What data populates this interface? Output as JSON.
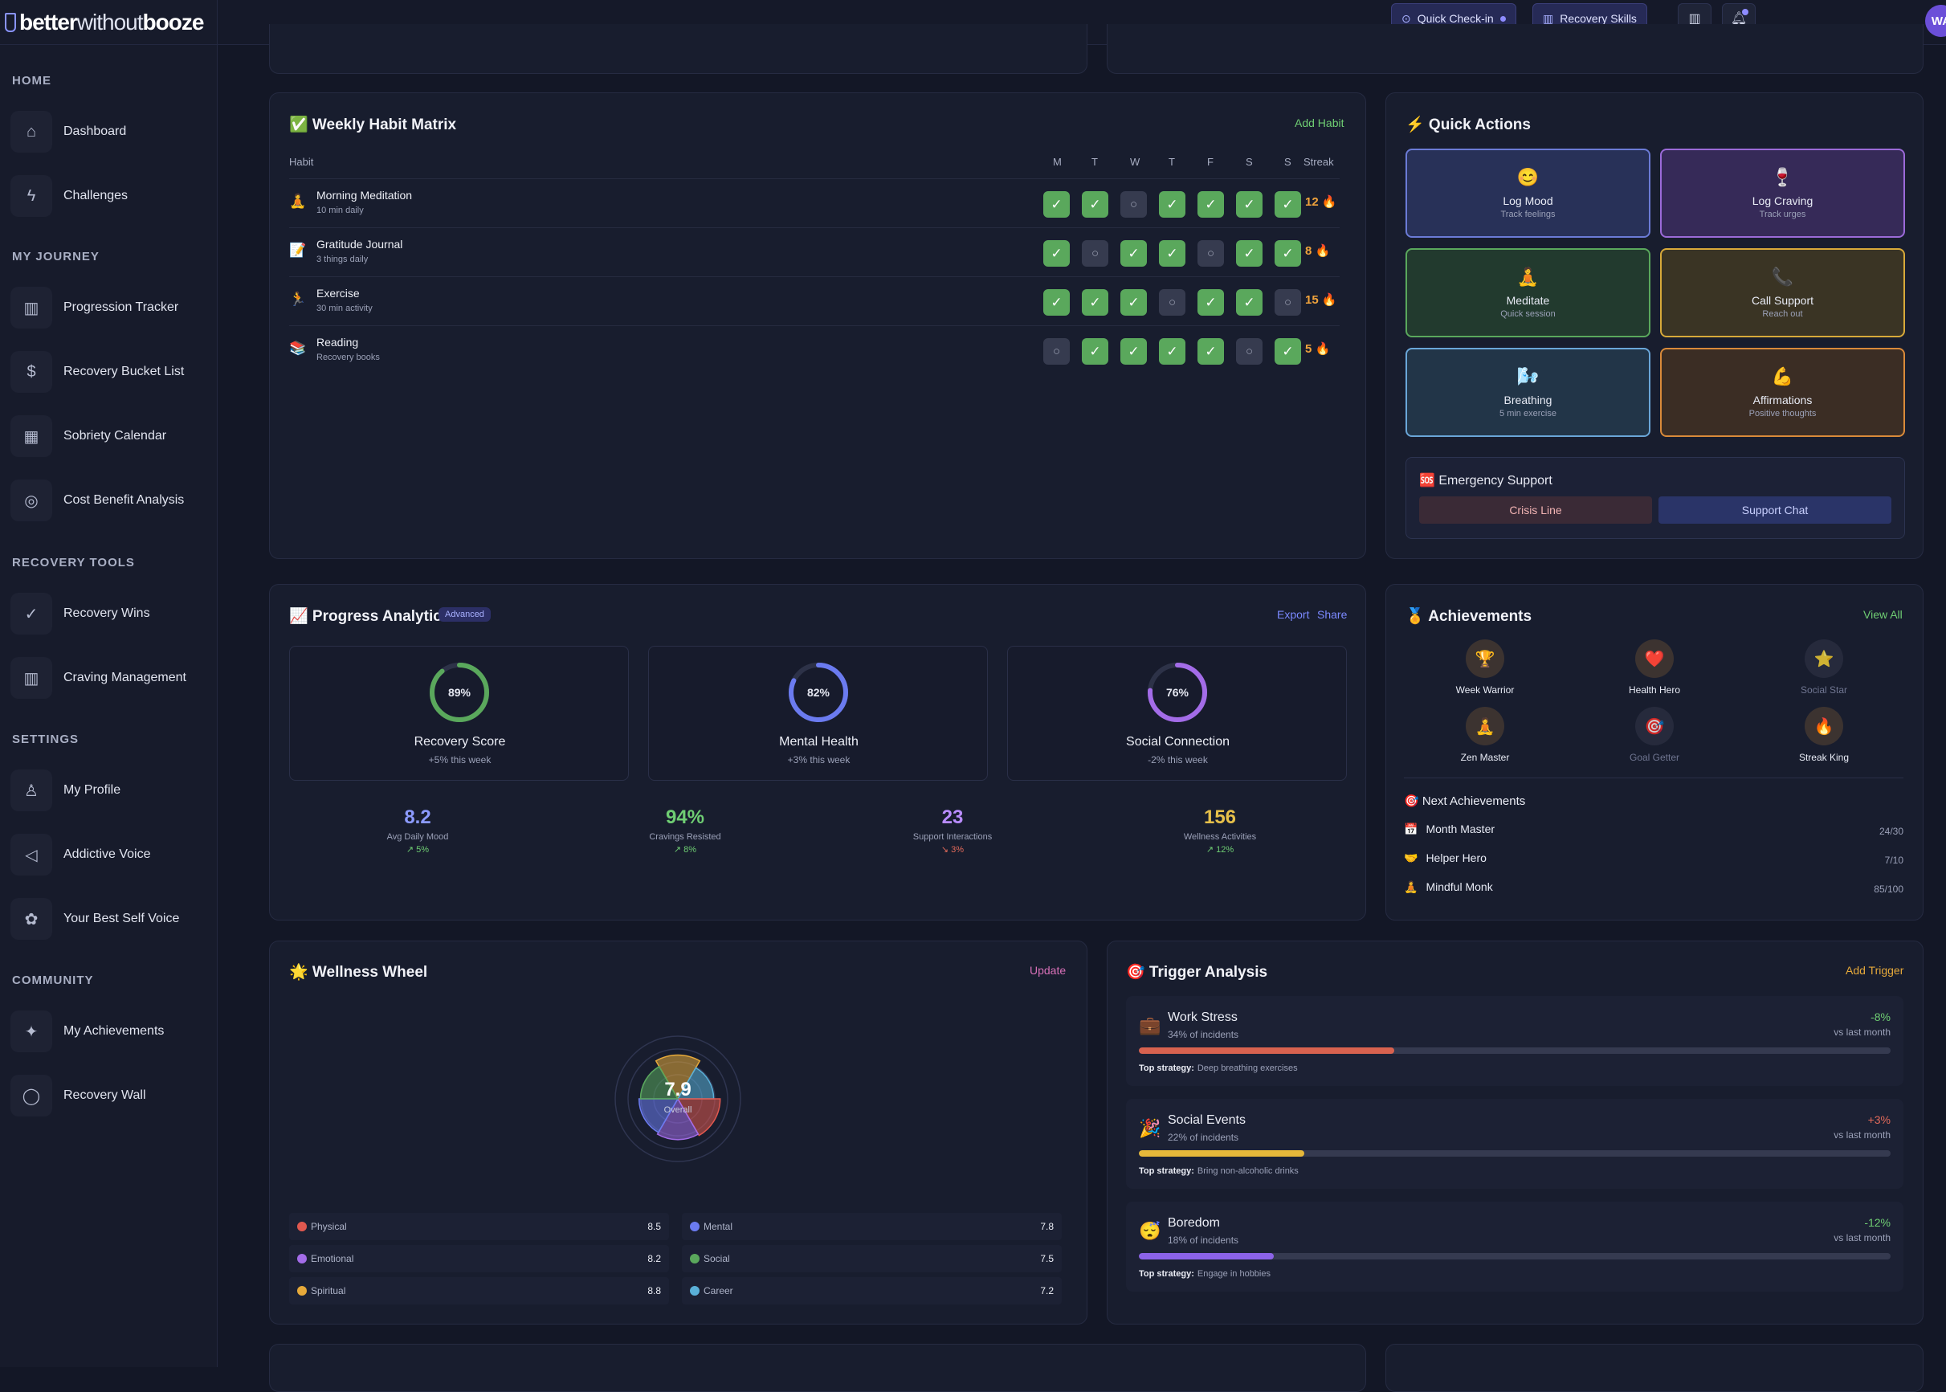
{
  "brand": {
    "part1": "better",
    "part2": "without",
    "part3": "booze"
  },
  "sidebar": {
    "sections": [
      {
        "label": "HOME",
        "items": [
          {
            "label": "Dashboard",
            "icon": "home-icon",
            "glyph": "⌂"
          },
          {
            "label": "Challenges",
            "icon": "bolt-icon",
            "glyph": "ϟ"
          }
        ]
      },
      {
        "label": "MY JOURNEY",
        "items": [
          {
            "label": "Progression Tracker",
            "icon": "bar-chart-icon",
            "glyph": "▥"
          },
          {
            "label": "Recovery Bucket List",
            "icon": "dollar-icon",
            "glyph": "$"
          },
          {
            "label": "Sobriety Calendar",
            "icon": "calendar-icon",
            "glyph": "▦"
          },
          {
            "label": "Cost Benefit Analysis",
            "icon": "coins-icon",
            "glyph": "◎"
          }
        ]
      },
      {
        "label": "RECOVERY TOOLS",
        "items": [
          {
            "label": "Recovery Wins",
            "icon": "check-circle-icon",
            "glyph": "✓"
          },
          {
            "label": "Craving Management",
            "icon": "bar-chart-icon",
            "glyph": "▥"
          }
        ]
      },
      {
        "label": "SETTINGS",
        "items": [
          {
            "label": "My Profile",
            "icon": "user-icon",
            "glyph": "♙"
          },
          {
            "label": "Addictive Voice",
            "icon": "speaker-icon",
            "glyph": "◁"
          },
          {
            "label": "Your Best Self Voice",
            "icon": "puzzle-icon",
            "glyph": "✿"
          }
        ]
      },
      {
        "label": "COMMUNITY",
        "items": [
          {
            "label": "My Achievements",
            "icon": "sparkle-icon",
            "glyph": "✦"
          },
          {
            "label": "Recovery Wall",
            "icon": "chat-icon",
            "glyph": "◯"
          }
        ]
      }
    ]
  },
  "topbar": {
    "checkin": "Quick Check-in",
    "skills": "Recovery Skills",
    "avatar": "WA"
  },
  "habits": {
    "title": "✅ Weekly Habit Matrix",
    "add": "Add Habit",
    "col_habit": "Habit",
    "col_streak": "Streak",
    "days": [
      "M",
      "T",
      "W",
      "T",
      "F",
      "S",
      "S"
    ],
    "rows": [
      {
        "icon": "🧘",
        "name": "Morning Meditation",
        "sub": "10 min daily",
        "cells": [
          1,
          1,
          0,
          1,
          1,
          1,
          1
        ],
        "streak": "12 🔥"
      },
      {
        "icon": "📝",
        "name": "Gratitude Journal",
        "sub": "3 things daily",
        "cells": [
          1,
          0,
          1,
          1,
          0,
          1,
          1
        ],
        "streak": "8 🔥"
      },
      {
        "icon": "🏃",
        "name": "Exercise",
        "sub": "30 min activity",
        "cells": [
          1,
          1,
          1,
          0,
          1,
          1,
          0
        ],
        "streak": "15 🔥"
      },
      {
        "icon": "📚",
        "name": "Reading",
        "sub": "Recovery books",
        "cells": [
          0,
          1,
          1,
          1,
          1,
          0,
          1
        ],
        "streak": "5 🔥"
      }
    ]
  },
  "quick": {
    "title": "⚡ Quick Actions",
    "items": [
      {
        "icon": "😊",
        "title": "Log Mood",
        "sub": "Track feelings",
        "border": "#6b7bd6",
        "bg": "#283158"
      },
      {
        "icon": "🍷",
        "title": "Log Craving",
        "sub": "Track urges",
        "border": "#9b6ad8",
        "bg": "#362a58"
      },
      {
        "icon": "🧘",
        "title": "Meditate",
        "sub": "Quick session",
        "border": "#5aa85c",
        "bg": "#223a2e"
      },
      {
        "icon": "📞",
        "title": "Call Support",
        "sub": "Reach out",
        "border": "#d7a93a",
        "bg": "#3a3424"
      },
      {
        "icon": "🌬️",
        "title": "Breathing",
        "sub": "5 min exercise",
        "border": "#6aa6d8",
        "bg": "#223548"
      },
      {
        "icon": "💪",
        "title": "Affirmations",
        "sub": "Positive thoughts",
        "border": "#d98a3a",
        "bg": "#3b2d24"
      }
    ],
    "emergency": {
      "title": "🆘 Emergency Support",
      "crisis": "Crisis Line",
      "chat": "Support Chat"
    }
  },
  "analytics": {
    "title": "📈 Progress Analytics",
    "badge": "Advanced",
    "export": "Export",
    "share": "Share",
    "rings": [
      {
        "value": 89,
        "label": "89%",
        "name": "Recovery Score",
        "sub": "+5% this week",
        "color": "#5aa85c"
      },
      {
        "value": 82,
        "label": "82%",
        "name": "Mental Health",
        "sub": "+3% this week",
        "color": "#6b7bf0"
      },
      {
        "value": 76,
        "label": "76%",
        "name": "Social Connection",
        "sub": "-2% this week",
        "color": "#a36ce8"
      }
    ],
    "stats": [
      {
        "value": "8.2",
        "label": "Avg Daily Mood",
        "change": "↗ 5%",
        "color": "#8c9bff",
        "ccolor": "#6fce73"
      },
      {
        "value": "94%",
        "label": "Cravings Resisted",
        "change": "↗ 8%",
        "color": "#6fce73",
        "ccolor": "#6fce73"
      },
      {
        "value": "23",
        "label": "Support Interactions",
        "change": "↘ 3%",
        "color": "#b98cff",
        "ccolor": "#e36a5a"
      },
      {
        "value": "156",
        "label": "Wellness Activities",
        "change": "↗ 12%",
        "color": "#e6c04a",
        "ccolor": "#6fce73"
      }
    ]
  },
  "achievements": {
    "title": "🏅 Achievements",
    "view": "View All",
    "badges": [
      {
        "icon": "🏆",
        "name": "Week Warrior",
        "earned": true
      },
      {
        "icon": "❤️",
        "name": "Health Hero",
        "earned": true
      },
      {
        "icon": "⭐",
        "name": "Social Star",
        "earned": false
      },
      {
        "icon": "🧘",
        "name": "Zen Master",
        "earned": true
      },
      {
        "icon": "🎯",
        "name": "Goal Getter",
        "earned": false
      },
      {
        "icon": "🔥",
        "name": "Streak King",
        "earned": true
      }
    ],
    "next_title": "🎯 Next Achievements",
    "next": [
      {
        "icon": "📅",
        "name": "Month Master",
        "value": "24/30"
      },
      {
        "icon": "🤝",
        "name": "Helper Hero",
        "value": "7/10"
      },
      {
        "icon": "🧘",
        "name": "Mindful Monk",
        "value": "85/100"
      }
    ]
  },
  "wellness": {
    "title": "🌟 Wellness Wheel",
    "update": "Update",
    "overall": "7.9",
    "overall_label": "Overall",
    "areas": [
      {
        "name": "Physical",
        "value": "8.5",
        "color": "#e0584f"
      },
      {
        "name": "Mental",
        "value": "7.8",
        "color": "#6b7bf0"
      },
      {
        "name": "Emotional",
        "value": "8.2",
        "color": "#a36ce8"
      },
      {
        "name": "Social",
        "value": "7.5",
        "color": "#5aa85c"
      },
      {
        "name": "Spiritual",
        "value": "8.8",
        "color": "#e6a93a"
      },
      {
        "name": "Career",
        "value": "7.2",
        "color": "#5ab0d8"
      }
    ]
  },
  "triggers": {
    "title": "🎯 Trigger Analysis",
    "add": "Add Trigger",
    "strategy_label": "Top strategy:",
    "items": [
      {
        "icon": "💼",
        "name": "Work Stress",
        "share": "34% of incidents",
        "pct": 34,
        "change": "-8%",
        "vs": "vs last month",
        "strategy": "Deep breathing exercises",
        "color": "#d8624f",
        "ccolor": "#6fce73"
      },
      {
        "icon": "🎉",
        "name": "Social Events",
        "share": "22% of incidents",
        "pct": 22,
        "change": "+3%",
        "vs": "vs last month",
        "strategy": "Bring non-alcoholic drinks",
        "color": "#e6b83a",
        "ccolor": "#e36a5a"
      },
      {
        "icon": "😴",
        "name": "Boredom",
        "share": "18% of incidents",
        "pct": 18,
        "change": "-12%",
        "vs": "vs last month",
        "strategy": "Engage in hobbies",
        "color": "#8c63e8",
        "ccolor": "#6fce73"
      }
    ]
  }
}
